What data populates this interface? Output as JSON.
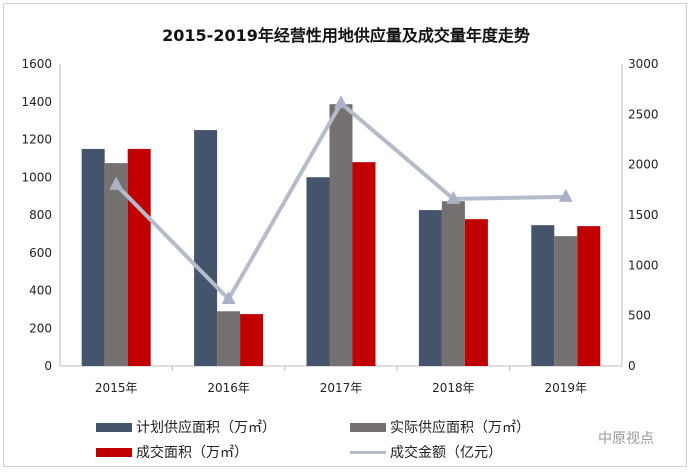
{
  "chart_data": {
    "type": "bar",
    "title": "2015-2019年经营性用地供应量及成交量年度走势",
    "categories": [
      "2015年",
      "2016年",
      "2017年",
      "2018年",
      "2019年"
    ],
    "ylim_left": [
      0,
      1600
    ],
    "yticks_left": [
      0,
      200,
      400,
      600,
      800,
      1000,
      1200,
      1400,
      1600
    ],
    "ylim_right": [
      0,
      3000
    ],
    "yticks_right": [
      0,
      500,
      1000,
      1500,
      2000,
      2500,
      3000
    ],
    "grid": false,
    "legend_position": "bottom",
    "series": [
      {
        "name": "计划供应面积（万㎡）",
        "type": "bar",
        "axis": "left",
        "color": "#44546a",
        "values": [
          1150,
          1250,
          1000,
          826,
          746
        ]
      },
      {
        "name": "实际供应面积（万㎡）",
        "type": "bar",
        "axis": "left",
        "color": "#767171",
        "values": [
          1075,
          290,
          1387,
          873,
          688
        ]
      },
      {
        "name": "成交面积（万㎡）",
        "type": "bar",
        "axis": "left",
        "color": "#c00000",
        "values": [
          1150,
          275,
          1080,
          778,
          741
        ]
      },
      {
        "name": "成交金额（亿元）",
        "type": "line",
        "axis": "right",
        "color": "#b4bccb",
        "marker": "triangle",
        "values": [
          1800,
          665,
          2610,
          1660,
          1680
        ]
      }
    ]
  },
  "watermark": "中原视点"
}
